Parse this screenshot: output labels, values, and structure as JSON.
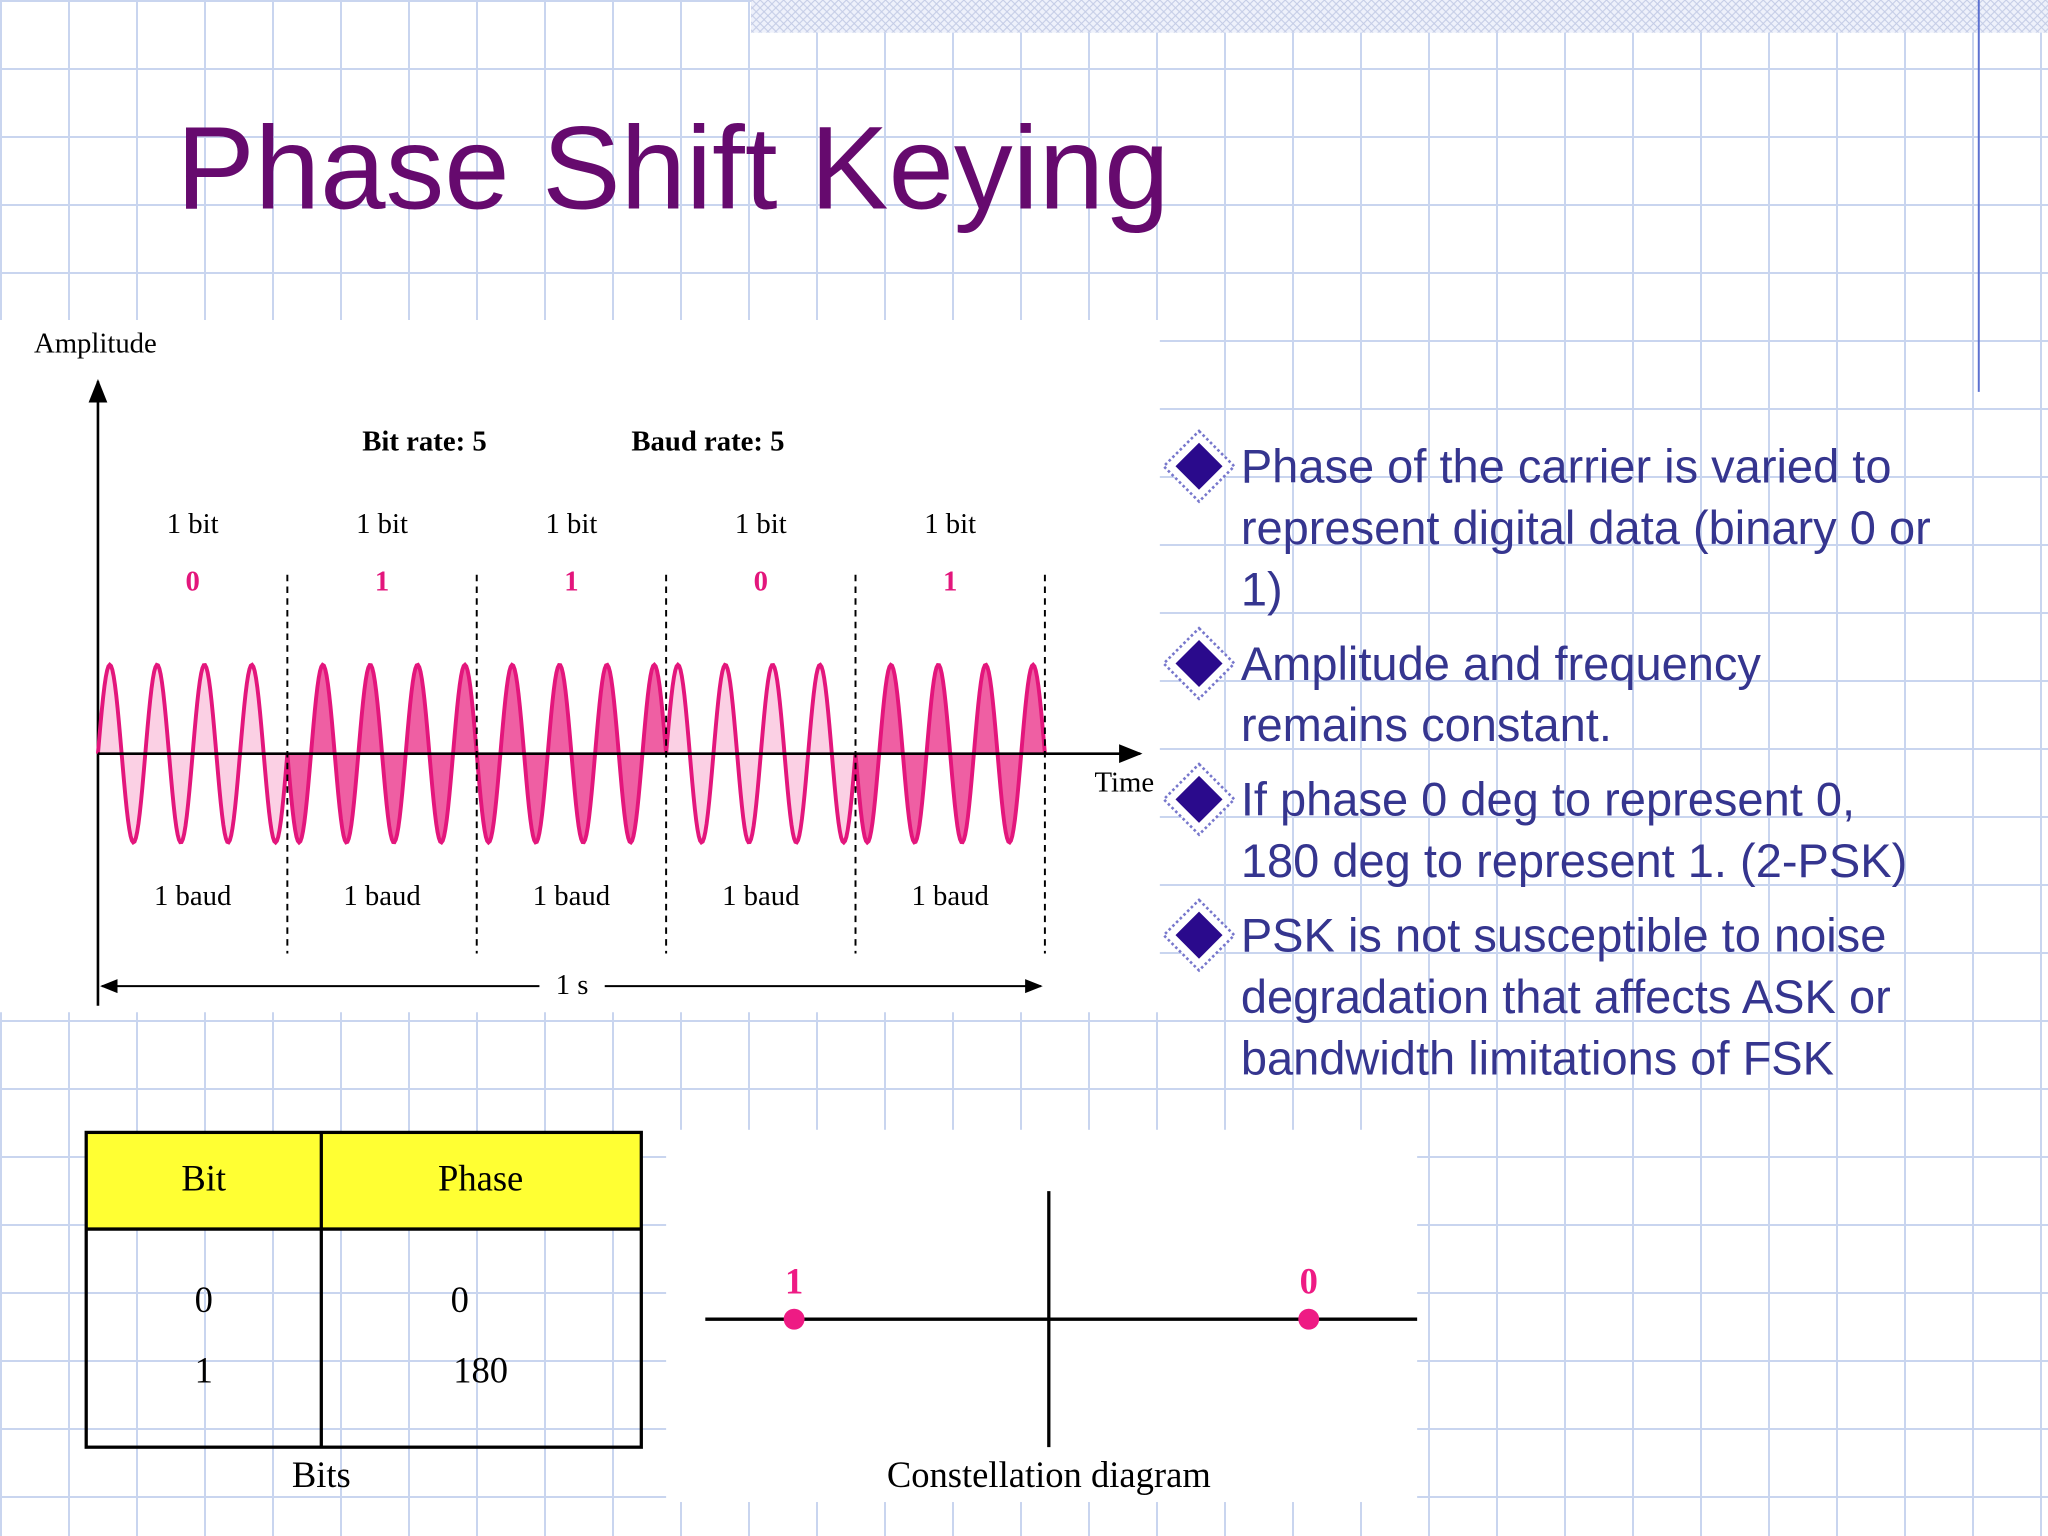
{
  "title": "Phase Shift Keying",
  "diagram": {
    "y_axis_label": "Amplitude",
    "x_axis_label": "Time",
    "bit_rate": "Bit rate: 5",
    "baud_rate": "Baud rate: 5",
    "duration": "1 s",
    "segments": [
      {
        "bit_label": "1 bit",
        "bit": 0,
        "baud_label": "1 baud"
      },
      {
        "bit_label": "1 bit",
        "bit": 1,
        "baud_label": "1 baud"
      },
      {
        "bit_label": "1 bit",
        "bit": 1,
        "baud_label": "1 baud"
      },
      {
        "bit_label": "1 bit",
        "bit": 0,
        "baud_label": "1 baud"
      },
      {
        "bit_label": "1 bit",
        "bit": 1,
        "baud_label": "1 baud"
      }
    ]
  },
  "bullets": [
    [
      "Phase of the carrier is varied to",
      "represent digital data (binary 0 or",
      "1)"
    ],
    [
      "Amplitude and frequency",
      "remains constant."
    ],
    [
      "If phase 0 deg to represent 0,",
      "180 deg to represent 1. (2-PSK)"
    ],
    [
      "PSK is not susceptible to noise",
      "degradation that affects ASK or",
      "bandwidth limitations of FSK"
    ]
  ],
  "table": {
    "headers": [
      "Bit",
      "Phase"
    ],
    "rows": [
      [
        0,
        0
      ],
      [
        1,
        180
      ]
    ],
    "caption": "Bits"
  },
  "constellation": {
    "points": [
      "1",
      "0"
    ],
    "caption": "Constellation diagram"
  }
}
